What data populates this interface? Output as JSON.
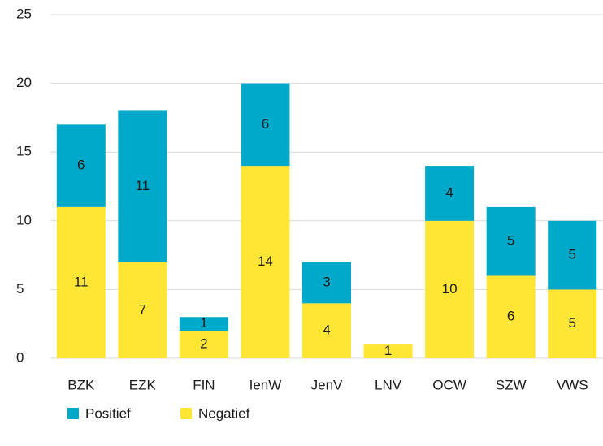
{
  "chart_data": {
    "type": "stacked_bar",
    "categories": [
      "BZK",
      "EZK",
      "FIN",
      "IenW",
      "JenV",
      "LNV",
      "OCW",
      "SZW",
      "VWS"
    ],
    "series": [
      {
        "name": "Positief",
        "color": "#00a8c9",
        "values": [
          6,
          11,
          1,
          6,
          3,
          null,
          4,
          5,
          5
        ]
      },
      {
        "name": "Negatief",
        "color": "#ffe634",
        "values": [
          11,
          7,
          2,
          14,
          4,
          1,
          10,
          6,
          5
        ]
      }
    ],
    "ylim": [
      0,
      25
    ],
    "yticks": [
      0,
      5,
      10,
      15,
      20,
      25
    ],
    "grid": true,
    "legend": "bottom-left"
  }
}
